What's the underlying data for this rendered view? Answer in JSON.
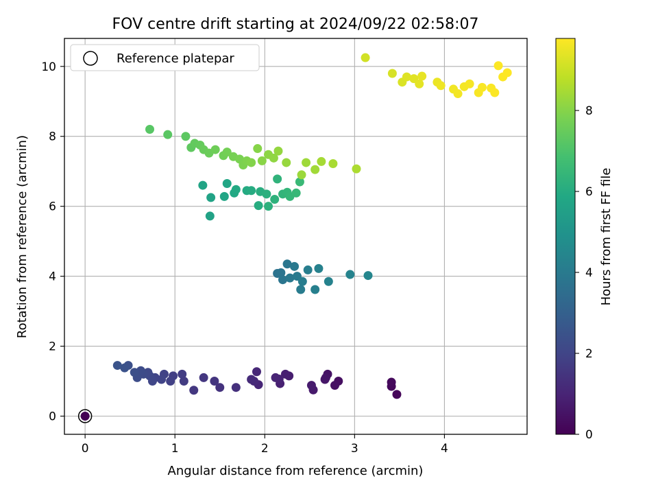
{
  "chart_data": {
    "type": "scatter",
    "title": "FOV centre drift starting at 2024/09/22 02:58:07",
    "xlabel": "Angular distance from reference (arcmin)",
    "ylabel": "Rotation from reference (arcmin)",
    "xlim": [
      -0.23,
      4.92
    ],
    "ylim": [
      -0.52,
      10.8
    ],
    "xticks": [
      0,
      1,
      2,
      3,
      4
    ],
    "yticks": [
      0,
      2,
      4,
      6,
      8,
      10
    ],
    "grid": true,
    "legend": {
      "position": "top-left",
      "entries": [
        "Reference platepar"
      ]
    },
    "colorbar": {
      "label": "Hours from first FF file",
      "min": 0,
      "max": 9.78,
      "ticks": [
        0,
        2,
        4,
        6,
        8
      ],
      "colormap": "viridis"
    },
    "reference_point": {
      "x": 0,
      "y": 0,
      "label": "Reference platepar"
    },
    "series": [
      {
        "columns": [
          "x",
          "y",
          "hours"
        ],
        "points": [
          [
            0,
            0,
            0.0
          ],
          [
            3.47,
            0.62,
            0.15
          ],
          [
            3.41,
            0.85,
            0.2
          ],
          [
            3.41,
            0.97,
            0.25
          ],
          [
            2.82,
            1.0,
            0.4
          ],
          [
            2.78,
            0.88,
            0.45
          ],
          [
            2.7,
            1.2,
            0.5
          ],
          [
            2.68,
            1.1,
            0.55
          ],
          [
            2.67,
            1.05,
            0.6
          ],
          [
            2.54,
            0.75,
            0.7
          ],
          [
            2.52,
            0.88,
            0.75
          ],
          [
            2.27,
            1.15,
            0.8
          ],
          [
            2.23,
            1.2,
            0.85
          ],
          [
            2.17,
            0.93,
            0.9
          ],
          [
            2.16,
            1.06,
            0.95
          ],
          [
            2.12,
            1.1,
            1.0
          ],
          [
            1.93,
            0.9,
            1.05
          ],
          [
            1.91,
            1.27,
            1.1
          ],
          [
            1.88,
            1.0,
            1.15
          ],
          [
            1.85,
            1.05,
            1.2
          ],
          [
            1.68,
            0.82,
            1.35
          ],
          [
            1.5,
            0.82,
            1.45
          ],
          [
            1.44,
            1.0,
            1.5
          ],
          [
            1.32,
            1.1,
            1.55
          ],
          [
            1.21,
            0.74,
            1.6
          ],
          [
            1.1,
            1.0,
            1.7
          ],
          [
            1.08,
            1.2,
            1.75
          ],
          [
            0.98,
            1.15,
            1.8
          ],
          [
            0.95,
            1.0,
            1.85
          ],
          [
            0.88,
            1.2,
            1.9
          ],
          [
            0.85,
            1.05,
            1.95
          ],
          [
            0.78,
            1.1,
            2.0
          ],
          [
            0.75,
            1.0,
            2.05
          ],
          [
            0.72,
            1.15,
            2.1
          ],
          [
            0.7,
            1.25,
            2.15
          ],
          [
            0.65,
            1.2,
            2.2
          ],
          [
            0.62,
            1.3,
            2.25
          ],
          [
            0.58,
            1.1,
            2.3
          ],
          [
            0.55,
            1.25,
            2.35
          ],
          [
            0.48,
            1.45,
            2.4
          ],
          [
            0.44,
            1.38,
            2.45
          ],
          [
            0.36,
            1.45,
            2.5
          ],
          [
            2.14,
            4.08,
            3.7
          ],
          [
            2.18,
            4.1,
            3.75
          ],
          [
            2.2,
            3.9,
            3.8
          ],
          [
            2.25,
            4.35,
            3.85
          ],
          [
            2.28,
            3.95,
            3.9
          ],
          [
            2.33,
            4.28,
            3.95
          ],
          [
            2.36,
            4.0,
            4.0
          ],
          [
            2.4,
            3.62,
            4.05
          ],
          [
            2.42,
            3.85,
            4.1
          ],
          [
            2.48,
            4.18,
            4.15
          ],
          [
            2.56,
            3.62,
            4.2
          ],
          [
            2.6,
            4.22,
            4.25
          ],
          [
            2.71,
            3.85,
            4.3
          ],
          [
            2.95,
            4.05,
            4.35
          ],
          [
            3.15,
            4.02,
            4.45
          ],
          [
            1.39,
            5.72,
            5.6
          ],
          [
            1.4,
            6.25,
            5.65
          ],
          [
            1.31,
            6.6,
            5.7
          ],
          [
            1.55,
            6.28,
            5.75
          ],
          [
            1.58,
            6.65,
            5.8
          ],
          [
            1.66,
            6.38,
            5.85
          ],
          [
            1.68,
            6.48,
            5.9
          ],
          [
            1.8,
            6.45,
            5.95
          ],
          [
            1.85,
            6.45,
            6.0
          ],
          [
            1.93,
            6.02,
            6.05
          ],
          [
            1.95,
            6.42,
            6.1
          ],
          [
            2.02,
            6.35,
            6.15
          ],
          [
            2.04,
            6.0,
            6.2
          ],
          [
            2.11,
            6.2,
            6.25
          ],
          [
            2.14,
            6.78,
            6.3
          ],
          [
            2.2,
            6.35,
            6.35
          ],
          [
            2.25,
            6.4,
            6.4
          ],
          [
            2.28,
            6.28,
            6.45
          ],
          [
            2.35,
            6.38,
            6.5
          ],
          [
            2.39,
            6.7,
            6.55
          ],
          [
            0.72,
            8.2,
            7.2
          ],
          [
            0.92,
            8.05,
            7.25
          ],
          [
            1.12,
            8.0,
            7.3
          ],
          [
            1.18,
            7.68,
            7.35
          ],
          [
            1.22,
            7.8,
            7.4
          ],
          [
            1.28,
            7.75,
            7.45
          ],
          [
            1.32,
            7.62,
            7.5
          ],
          [
            1.38,
            7.52,
            7.55
          ],
          [
            1.45,
            7.62,
            7.6
          ],
          [
            1.54,
            7.45,
            7.65
          ],
          [
            1.58,
            7.55,
            7.7
          ],
          [
            1.65,
            7.42,
            7.75
          ],
          [
            1.72,
            7.35,
            7.8
          ],
          [
            1.76,
            7.18,
            7.85
          ],
          [
            1.8,
            7.3,
            7.9
          ],
          [
            1.85,
            7.25,
            7.95
          ],
          [
            1.92,
            7.65,
            8.0
          ],
          [
            1.97,
            7.3,
            8.05
          ],
          [
            2.04,
            7.48,
            8.1
          ],
          [
            2.1,
            7.38,
            8.15
          ],
          [
            2.15,
            7.58,
            8.2
          ],
          [
            2.24,
            7.25,
            8.25
          ],
          [
            2.41,
            6.9,
            8.3
          ],
          [
            2.46,
            7.25,
            8.35
          ],
          [
            2.56,
            7.05,
            8.4
          ],
          [
            2.63,
            7.28,
            8.45
          ],
          [
            2.76,
            7.22,
            8.5
          ],
          [
            3.02,
            7.07,
            8.55
          ],
          [
            3.12,
            10.25,
            9.1
          ],
          [
            3.42,
            9.8,
            9.2
          ],
          [
            3.53,
            9.55,
            9.25
          ],
          [
            3.58,
            9.7,
            9.3
          ],
          [
            3.66,
            9.65,
            9.35
          ],
          [
            3.72,
            9.5,
            9.4
          ],
          [
            3.75,
            9.72,
            9.45
          ],
          [
            3.92,
            9.55,
            9.5
          ],
          [
            3.96,
            9.45,
            9.55
          ],
          [
            4.1,
            9.35,
            9.6
          ],
          [
            4.15,
            9.22,
            9.62
          ],
          [
            4.22,
            9.42,
            9.65
          ],
          [
            4.28,
            9.5,
            9.68
          ],
          [
            4.38,
            9.25,
            9.7
          ],
          [
            4.42,
            9.4,
            9.72
          ],
          [
            4.52,
            9.38,
            9.74
          ],
          [
            4.56,
            9.25,
            9.75
          ],
          [
            4.6,
            10.02,
            9.76
          ],
          [
            4.65,
            9.7,
            9.77
          ],
          [
            4.7,
            9.82,
            9.78
          ]
        ]
      }
    ]
  }
}
